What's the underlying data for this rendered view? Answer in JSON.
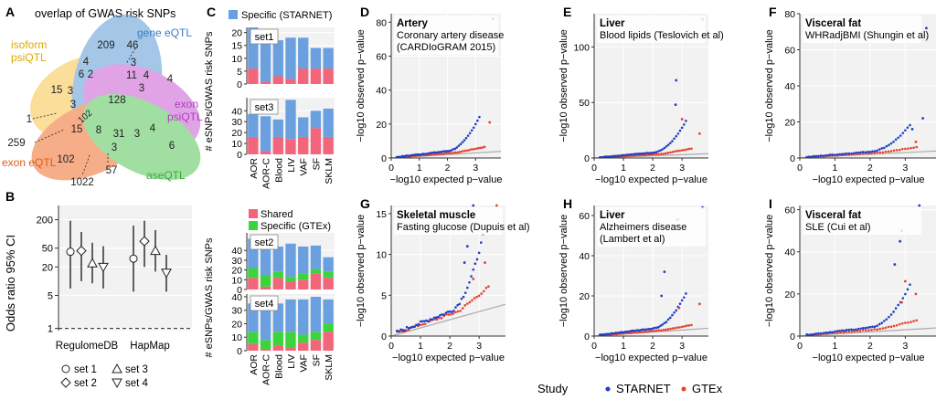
{
  "panels": {
    "A": {
      "letter": "A",
      "title": "overlap of GWAS risk SNPs",
      "sets": [
        {
          "name": "isoform psiQTL",
          "label1": "isoform",
          "label2": "psiQTL",
          "color": "#f6c447"
        },
        {
          "name": "gene eQTL",
          "label1": "gene eQTL",
          "label2": "",
          "color": "#5b9bd5"
        },
        {
          "name": "exon psiQTL",
          "label1": "exon",
          "label2": "psiQTL",
          "color": "#c85ad3"
        },
        {
          "name": "exon eQTL",
          "label1": "exon eQTL",
          "label2": "",
          "color": "#ef6c2a"
        },
        {
          "name": "aseQTL",
          "label1": "aseQTL",
          "label2": "",
          "color": "#55c457"
        }
      ],
      "counts": [
        {
          "value": "209"
        },
        {
          "value": "46"
        },
        {
          "value": "15"
        },
        {
          "value": "6"
        },
        {
          "value": "2"
        },
        {
          "value": "4"
        },
        {
          "value": "3"
        },
        {
          "value": "11"
        },
        {
          "value": "4"
        },
        {
          "value": "4"
        },
        {
          "value": "3"
        },
        {
          "value": "3"
        },
        {
          "value": "128"
        },
        {
          "value": "3"
        },
        {
          "value": "102"
        },
        {
          "value": "1"
        },
        {
          "value": "15"
        },
        {
          "value": "8"
        },
        {
          "value": "31"
        },
        {
          "value": "3"
        },
        {
          "value": "4"
        },
        {
          "value": "259"
        },
        {
          "value": "6"
        },
        {
          "value": "3"
        },
        {
          "value": "102"
        },
        {
          "value": "57"
        },
        {
          "value": "1022"
        }
      ]
    },
    "B": {
      "letter": "B",
      "ylabel": "Odds ratio 95% CI",
      "yticks": [
        1,
        5,
        20,
        50,
        200
      ],
      "yrange": [
        0.9,
        400
      ],
      "categories": [
        "RegulomeDB",
        "HapMap"
      ],
      "points": [
        {
          "category": "RegulomeDB",
          "set": "set 1",
          "symbol": "circle",
          "or": 42,
          "lo": 7,
          "hi": 190
        },
        {
          "category": "RegulomeDB",
          "set": "set 2",
          "symbol": "diamond",
          "or": 44,
          "lo": 10,
          "hi": 110
        },
        {
          "category": "RegulomeDB",
          "set": "set 3",
          "symbol": "triangle-up",
          "or": 24,
          "lo": 9,
          "hi": 65
        },
        {
          "category": "RegulomeDB",
          "set": "set 4",
          "symbol": "triangle-down",
          "or": 20,
          "lo": 7,
          "hi": 55
        },
        {
          "category": "HapMap",
          "set": "set 1",
          "symbol": "circle",
          "or": 30,
          "lo": 6,
          "hi": 150
        },
        {
          "category": "HapMap",
          "set": "set 2",
          "symbol": "diamond",
          "or": 70,
          "lo": 20,
          "hi": 190
        },
        {
          "category": "HapMap",
          "set": "set 3",
          "symbol": "triangle-up",
          "or": 44,
          "lo": 16,
          "hi": 120
        },
        {
          "category": "HapMap",
          "set": "set 4",
          "symbol": "triangle-down",
          "or": 15,
          "lo": 6,
          "hi": 36
        }
      ],
      "legend": [
        {
          "label": "set 1",
          "symbol": "circle"
        },
        {
          "label": "set 3",
          "symbol": "triangle-up"
        },
        {
          "label": "set 2",
          "symbol": "diamond"
        },
        {
          "label": "set 4",
          "symbol": "triangle-down"
        }
      ]
    },
    "C": {
      "letter": "C",
      "legend_top": [
        {
          "label": "Specific (STARNET)",
          "color": "#6a9fe0"
        }
      ],
      "legend_mid": [
        {
          "label": "Shared",
          "color": "#f2657a"
        },
        {
          "label": "Specific (GTEx)",
          "color": "#3cd43c"
        }
      ],
      "ylabel_top": "# eSNPs/GWAS risk SNPs",
      "ylabel_bottom": "# eSNPs/GWAS risk SNPs",
      "tissues": [
        "AOR",
        "AOR-C",
        "Blood",
        "LIV",
        "VAF",
        "SF",
        "SKLM"
      ],
      "tick_labels": [
        "AOR",
        "AOR-C",
        "Blood",
        "LIV",
        "VAF",
        "SF",
        "SKLM"
      ],
      "colors": {
        "starnet": "#6a9fe0",
        "gtex": "#3cd43c",
        "shared": "#f2657a"
      },
      "subplots": [
        {
          "label": "set1",
          "ymax": 22,
          "yticks": [
            0,
            5,
            10,
            15,
            20
          ],
          "shared": [
            6,
            1,
            3,
            2,
            6,
            6,
            6
          ],
          "gtex": [
            0,
            0,
            0,
            0,
            0,
            0,
            0
          ],
          "starnet": [
            16,
            20,
            14,
            16,
            12,
            8,
            8
          ]
        },
        {
          "label": "set3",
          "ymax": 52,
          "yticks": [
            0,
            10,
            20,
            30,
            40
          ],
          "shared": [
            16,
            3,
            16,
            14,
            16,
            24,
            16
          ],
          "gtex": [
            0,
            0,
            0,
            0,
            0,
            0,
            0
          ],
          "starnet": [
            21,
            32,
            16,
            36,
            18,
            16,
            26
          ]
        },
        {
          "label": "set2",
          "ymax": 58,
          "yticks": [
            0,
            10,
            20,
            30,
            40
          ],
          "shared": [
            12,
            3,
            12,
            8,
            10,
            16,
            12
          ],
          "gtex": [
            10,
            12,
            6,
            5,
            6,
            5,
            6
          ],
          "starnet": [
            30,
            33,
            26,
            34,
            28,
            24,
            15
          ]
        },
        {
          "label": "set4",
          "ymax": 42,
          "yticks": [
            0,
            10,
            20,
            30,
            40
          ],
          "shared": [
            5,
            1,
            4,
            2,
            6,
            8,
            14
          ],
          "gtex": [
            9,
            7,
            10,
            12,
            6,
            6,
            6
          ],
          "starnet": [
            21,
            28,
            21,
            24,
            26,
            26,
            18
          ]
        }
      ]
    },
    "qq": {
      "xlabel": "−log10 expected p−value",
      "ylabel": "−log10 observed p−value",
      "xticks": [
        0,
        1,
        2,
        3
      ],
      "xrange": [
        0,
        3.9
      ],
      "colors": {
        "starnet": "#1f3fc4",
        "gtex": "#e8402a",
        "null": "#aaaaaa"
      },
      "panels": [
        {
          "id": "D",
          "tissue": "Artery",
          "trait1": "Coronary artery disease",
          "trait2": "(CARDIoGRAM 2015)",
          "ymax": 85,
          "yticks": [
            0,
            20,
            40,
            60,
            80
          ],
          "top_starnet": [
            [
              3.62,
              82
            ],
            [
              3.2,
              64
            ]
          ],
          "top_gtex": [
            [
              3.5,
              21
            ]
          ],
          "tail_starnet": 14,
          "tail_gtex": 6
        },
        {
          "id": "E",
          "tissue": "Liver",
          "trait1": "Blood lipids (Teslovich et al)",
          "trait2": "",
          "ymax": 130,
          "yticks": [
            0,
            50,
            100
          ],
          "top_starnet": [
            [
              3.7,
              125
            ],
            [
              3.3,
              108
            ],
            [
              2.8,
              70
            ],
            [
              2.78,
              48
            ]
          ],
          "top_gtex": [
            [
              3.0,
              35
            ],
            [
              3.6,
              22
            ]
          ],
          "tail_starnet": 20,
          "tail_gtex": 10
        },
        {
          "id": "F",
          "tissue": "Visceral fat",
          "trait1": "WHRadjBMI (Shungin et al)",
          "trait2": "",
          "ymax": 80,
          "yticks": [
            0,
            20,
            40,
            60,
            80
          ],
          "top_starnet": [
            [
              3.6,
              72
            ],
            [
              3.5,
              22
            ],
            [
              3.2,
              16
            ]
          ],
          "top_gtex": [
            [
              3.3,
              9
            ]
          ],
          "tail_starnet": 10,
          "tail_gtex": 5
        },
        {
          "id": "G",
          "tissue": "Skeletal muscle",
          "trait1": "Fasting glucose (Dupuis et al)",
          "trait2": "",
          "ymax": 16,
          "yticks": [
            0,
            5,
            10,
            15
          ],
          "top_starnet": [
            [
              2.8,
              16
            ],
            [
              2.6,
              11
            ],
            [
              2.5,
              9
            ]
          ],
          "top_gtex": [
            [
              3.6,
              16
            ],
            [
              3.2,
              9
            ],
            [
              2.8,
              7
            ]
          ],
          "tail_starnet": 6,
          "tail_gtex": 5
        },
        {
          "id": "H",
          "tissue": "Liver",
          "trait1": "Alzheimers disease",
          "trait2": "(Lambert et al)",
          "ymax": 65,
          "yticks": [
            0,
            20,
            40,
            60
          ],
          "top_starnet": [
            [
              3.7,
              64
            ],
            [
              2.85,
              58
            ],
            [
              2.8,
              55
            ],
            [
              2.4,
              32
            ],
            [
              2.3,
              20
            ]
          ],
          "top_gtex": [
            [
              2.9,
              14
            ],
            [
              3.6,
              16
            ]
          ],
          "tail_starnet": 12,
          "tail_gtex": 4
        },
        {
          "id": "I",
          "tissue": "Visceral fat",
          "trait1": "SLE (Cui et al)",
          "trait2": "",
          "ymax": 62,
          "yticks": [
            0,
            20,
            40,
            60
          ],
          "top_starnet": [
            [
              2.9,
              50
            ],
            [
              2.85,
              45
            ],
            [
              3.4,
              62
            ],
            [
              2.7,
              34
            ]
          ],
          "top_gtex": [
            [
              3.0,
              26
            ],
            [
              3.3,
              20
            ],
            [
              2.9,
              16
            ]
          ],
          "tail_starnet": 14,
          "tail_gtex": 8
        }
      ],
      "legend_title": "Study",
      "legend": [
        {
          "label": "STARNET",
          "color": "#1f3fc4"
        },
        {
          "label": "GTEx",
          "color": "#e8402a"
        }
      ]
    }
  }
}
